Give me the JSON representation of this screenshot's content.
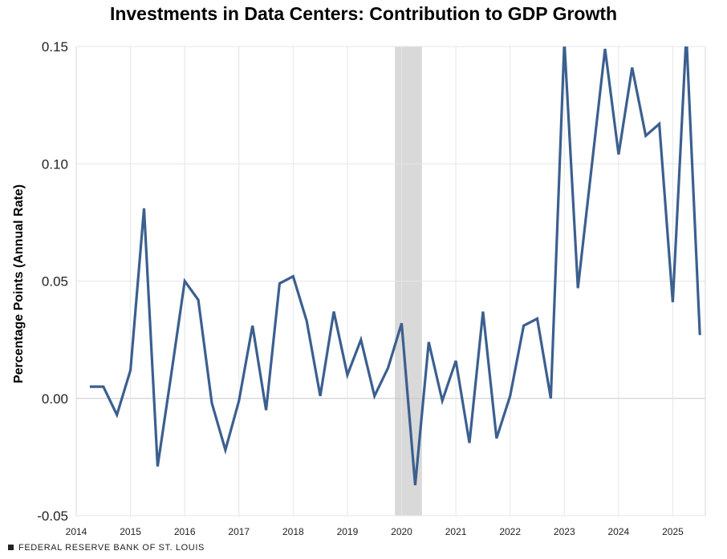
{
  "chart_data": {
    "type": "line",
    "title": "Investments in Data Centers: Contribution to GDP Growth",
    "xlabel": "",
    "ylabel": "Percentage Points (Annual Rate)",
    "xlim": [
      2014.0,
      2025.6
    ],
    "ylim": [
      -0.05,
      0.15
    ],
    "x_ticks": [
      "2014",
      "2015",
      "2016",
      "2017",
      "2018",
      "2019",
      "2020",
      "2021",
      "2022",
      "2023",
      "2024",
      "2025"
    ],
    "y_ticks": [
      "0.15",
      "0.10",
      "0.05",
      "0.00",
      "-0.05"
    ],
    "grid": true,
    "recession_band": [
      2019.875,
      2020.375
    ],
    "series": [
      {
        "name": "Data Centers",
        "color": "#3b5f8f",
        "x": [
          2014.25,
          2014.5,
          2014.75,
          2015.0,
          2015.25,
          2015.5,
          2015.75,
          2016.0,
          2016.25,
          2016.5,
          2016.75,
          2017.0,
          2017.25,
          2017.5,
          2017.75,
          2018.0,
          2018.25,
          2018.5,
          2018.75,
          2019.0,
          2019.25,
          2019.5,
          2019.75,
          2020.0,
          2020.25,
          2020.5,
          2020.75,
          2021.0,
          2021.25,
          2021.5,
          2021.75,
          2022.0,
          2022.25,
          2022.5,
          2022.75,
          2023.0,
          2023.25,
          2023.5,
          2023.75,
          2024.0,
          2024.25,
          2024.5,
          2024.75,
          2025.0,
          2025.25,
          2025.5
        ],
        "values": [
          0.005,
          0.005,
          -0.007,
          0.012,
          0.081,
          -0.029,
          0.01,
          0.05,
          0.042,
          -0.002,
          -0.022,
          -0.001,
          0.031,
          -0.005,
          0.049,
          0.052,
          0.033,
          0.001,
          0.037,
          0.01,
          0.025,
          0.001,
          0.013,
          0.032,
          -0.037,
          0.024,
          -0.001,
          0.016,
          -0.019,
          0.037,
          -0.017,
          0.001,
          0.031,
          0.034,
          0.0,
          0.152,
          0.047,
          0.098,
          0.149,
          0.104,
          0.141,
          0.112,
          0.117,
          0.041,
          0.155,
          0.027
        ]
      }
    ]
  },
  "footer": {
    "source": "FEDERAL RESERVE BANK OF ST. LOUIS"
  }
}
